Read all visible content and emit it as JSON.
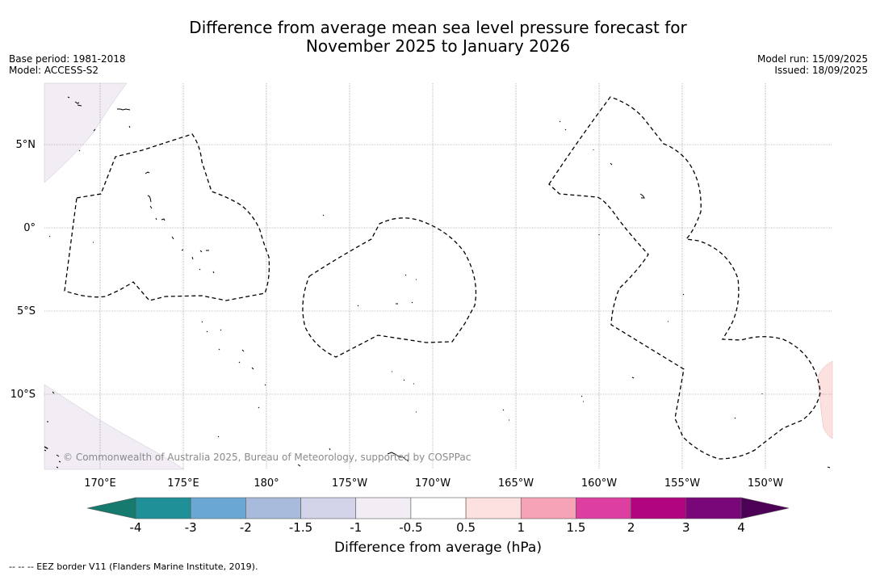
{
  "title": {
    "line1": "Difference from average mean sea level pressure forecast for",
    "line2": "November 2025 to January 2026"
  },
  "meta_left": {
    "base_period": "Base period: 1981-2018",
    "model": "Model: ACCESS-S2"
  },
  "meta_right": {
    "model_run": "Model run: 15/09/2025",
    "issued": "Issued: 18/09/2025"
  },
  "map": {
    "lat_labels": [
      "5°N",
      "0°",
      "5°S",
      "10°S"
    ],
    "lon_labels": [
      "170°E",
      "175°E",
      "180°",
      "175°W",
      "170°W",
      "165°W",
      "160°W",
      "155°W",
      "150°W"
    ],
    "copyright": "© Commonwealth of Australia 2025, Bureau of Meteorology, supported by COSPPac",
    "fill_regions": [
      {
        "category": "-1 to -0.5",
        "color": "#f2edf4",
        "location": "northwest corner"
      },
      {
        "category": "-1 to -0.5",
        "color": "#f2edf4",
        "location": "southwest corner"
      },
      {
        "category": "0.5 to 1",
        "color": "#fde0e0",
        "location": "east edge near 10°S"
      }
    ]
  },
  "colorbar": {
    "ticks": [
      "-4",
      "-3",
      "-2",
      "-1.5",
      "-1",
      "-0.5",
      "0.5",
      "1",
      "1.5",
      "2",
      "3",
      "4"
    ],
    "colors": [
      "#167b6e",
      "#1f9097",
      "#6aa8d3",
      "#a9bbdc",
      "#d2d3e8",
      "#f2edf4",
      "#ffffff",
      "#fde0e0",
      "#f7a3b7",
      "#dc3fa0",
      "#b0057f",
      "#7a077a",
      "#4c0056"
    ],
    "label": "Difference from average (hPa)"
  },
  "footnote": "--  --  -- EEZ border V11 (Flanders Marine Institute, 2019)."
}
